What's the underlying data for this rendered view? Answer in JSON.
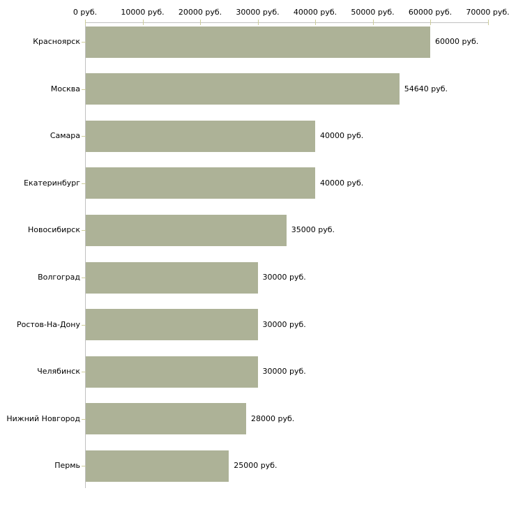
{
  "chart_data": {
    "type": "bar",
    "orientation": "horizontal",
    "title": "",
    "categories": [
      "Красноярск",
      "Москва",
      "Самара",
      "Екатеринбург",
      "Новосибирск",
      "Волгоград",
      "Ростов-На-Дону",
      "Челябинск",
      "Нижний Новгород",
      "Пермь"
    ],
    "values": [
      60000,
      54640,
      40000,
      40000,
      35000,
      30000,
      30000,
      30000,
      28000,
      25000
    ],
    "value_labels": [
      "60000 руб.",
      "54640 руб.",
      "40000 руб.",
      "40000 руб.",
      "35000 руб.",
      "30000 руб.",
      "30000 руб.",
      "30000 руб.",
      "28000 руб.",
      "25000 руб."
    ],
    "x_axis": {
      "position": "top",
      "range": [
        0,
        70000
      ],
      "tick_values": [
        0,
        10000,
        20000,
        30000,
        40000,
        50000,
        60000,
        70000
      ],
      "tick_labels": [
        "0 руб.",
        "10000 руб.",
        "20000 руб.",
        "30000 руб.",
        "40000 руб.",
        "50000 руб.",
        "60000 руб.",
        "70000 руб."
      ]
    },
    "unit": "руб.",
    "grid": false,
    "legend": false,
    "colors": {
      "bar": "#adb297",
      "axis_line": "#c0c0c0",
      "tick_mark": "#cccc99",
      "text": "#000000",
      "background": "#ffffff"
    }
  }
}
